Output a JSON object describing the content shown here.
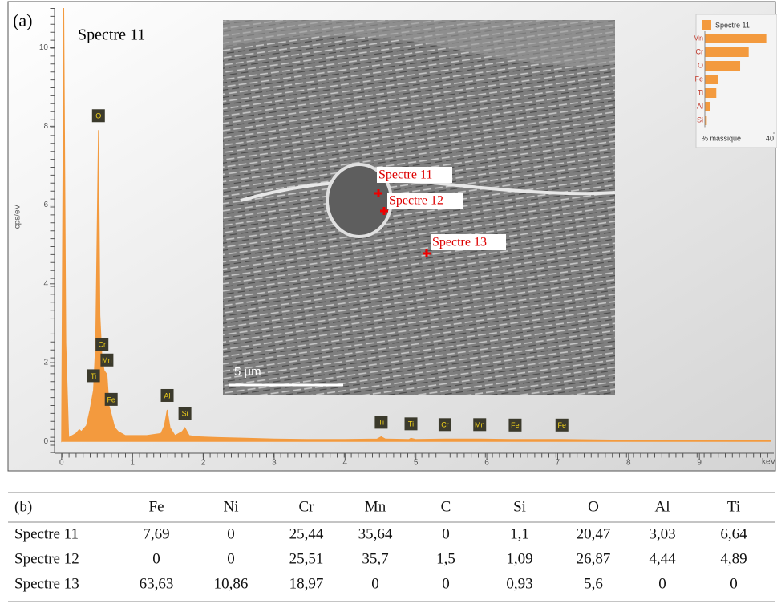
{
  "panel_a": "(a)",
  "chart_data": [
    {
      "type": "area",
      "title": "Spectre 11",
      "y_label": "cps/eV",
      "x_label": "keV",
      "x": [
        0,
        0.03,
        0.06,
        0.1,
        0.15,
        0.2,
        0.25,
        0.28,
        0.3,
        0.35,
        0.4,
        0.45,
        0.48,
        0.52,
        0.54,
        0.57,
        0.6,
        0.64,
        0.67,
        0.7,
        0.75,
        0.8,
        0.9,
        1.0,
        1.2,
        1.4,
        1.45,
        1.49,
        1.53,
        1.6,
        1.7,
        1.74,
        1.8,
        1.9,
        2.2,
        2.6,
        3.0,
        3.5,
        4.0,
        4.45,
        4.51,
        4.57,
        4.9,
        4.93,
        5.0,
        5.41,
        5.9,
        6.4,
        7.06,
        8.0,
        9.0,
        10.0
      ],
      "series": [
        {
          "color": "#f39a3e",
          "values": [
            0,
            11,
            2.5,
            0.1,
            0.15,
            0.2,
            0.3,
            0.25,
            0.3,
            0.4,
            0.8,
            1.3,
            2.5,
            7.9,
            3.2,
            2.1,
            1.8,
            1.7,
            0.9,
            0.7,
            0.35,
            0.25,
            0.15,
            0.15,
            0.15,
            0.2,
            0.4,
            0.8,
            0.35,
            0.15,
            0.25,
            0.35,
            0.15,
            0.12,
            0.1,
            0.08,
            0.06,
            0.05,
            0.05,
            0.06,
            0.12,
            0.06,
            0.05,
            0.08,
            0.05,
            0.06,
            0.06,
            0.05,
            0.05,
            0.03,
            0.02,
            0.02
          ]
        }
      ],
      "peaks": [
        {
          "label": "O",
          "x": 0.52
        },
        {
          "label": "Cr",
          "x": 0.57
        },
        {
          "label": "Mn",
          "x": 0.64
        },
        {
          "label": "Ti",
          "x": 0.45
        },
        {
          "label": "Fe",
          "x": 0.7
        },
        {
          "label": "Al",
          "x": 1.49
        },
        {
          "label": "Si",
          "x": 1.74
        },
        {
          "label": "Ti",
          "x": 4.51
        },
        {
          "label": "Ti",
          "x": 4.93
        },
        {
          "label": "Cr",
          "x": 5.41
        },
        {
          "label": "Mn",
          "x": 5.9
        },
        {
          "label": "Fe",
          "x": 6.4
        },
        {
          "label": "Fe",
          "x": 7.06
        }
      ],
      "xlim": [
        -0.1,
        10.05
      ],
      "ylim": [
        -0.3,
        11
      ],
      "xticks": [
        0,
        1,
        2,
        3,
        4,
        5,
        6,
        7,
        8,
        9
      ],
      "yticks": [
        0,
        2,
        4,
        6,
        8,
        10
      ]
    },
    {
      "type": "hbar",
      "x_label": "% massique",
      "categories": [
        "Mn",
        "Cr",
        "O",
        "Fe",
        "Ti",
        "Al",
        "Si"
      ],
      "series": [
        {
          "name": "Spectre 11",
          "color": "#f39a3e",
          "values": [
            35.64,
            25.44,
            20.47,
            7.69,
            6.64,
            3.03,
            1.1
          ]
        }
      ],
      "xlim": [
        0,
        40
      ],
      "xticks": [
        40
      ]
    }
  ],
  "sem_image": {
    "points": [
      {
        "label": "Spectre 11"
      },
      {
        "label": "Spectre 12"
      },
      {
        "label": "Spectre 13"
      }
    ],
    "scale_bar": "5 µm"
  },
  "table": {
    "header": [
      "(b)",
      "Fe",
      "Ni",
      "Cr",
      "Mn",
      "C",
      "Si",
      "O",
      "Al",
      "Ti"
    ],
    "rows": [
      [
        "Spectre 11",
        "7,69",
        "0",
        "25,44",
        "35,64",
        "0",
        "1,1",
        "20,47",
        "3,03",
        "6,64"
      ],
      [
        "Spectre 12",
        "0",
        "0",
        "25,51",
        "35,7",
        "1,5",
        "1,09",
        "26,87",
        "4,44",
        "4,89"
      ],
      [
        "Spectre 13",
        "63,63",
        "10,86",
        "18,97",
        "0",
        "0",
        "0,93",
        "5,6",
        "0",
        "0"
      ]
    ]
  }
}
